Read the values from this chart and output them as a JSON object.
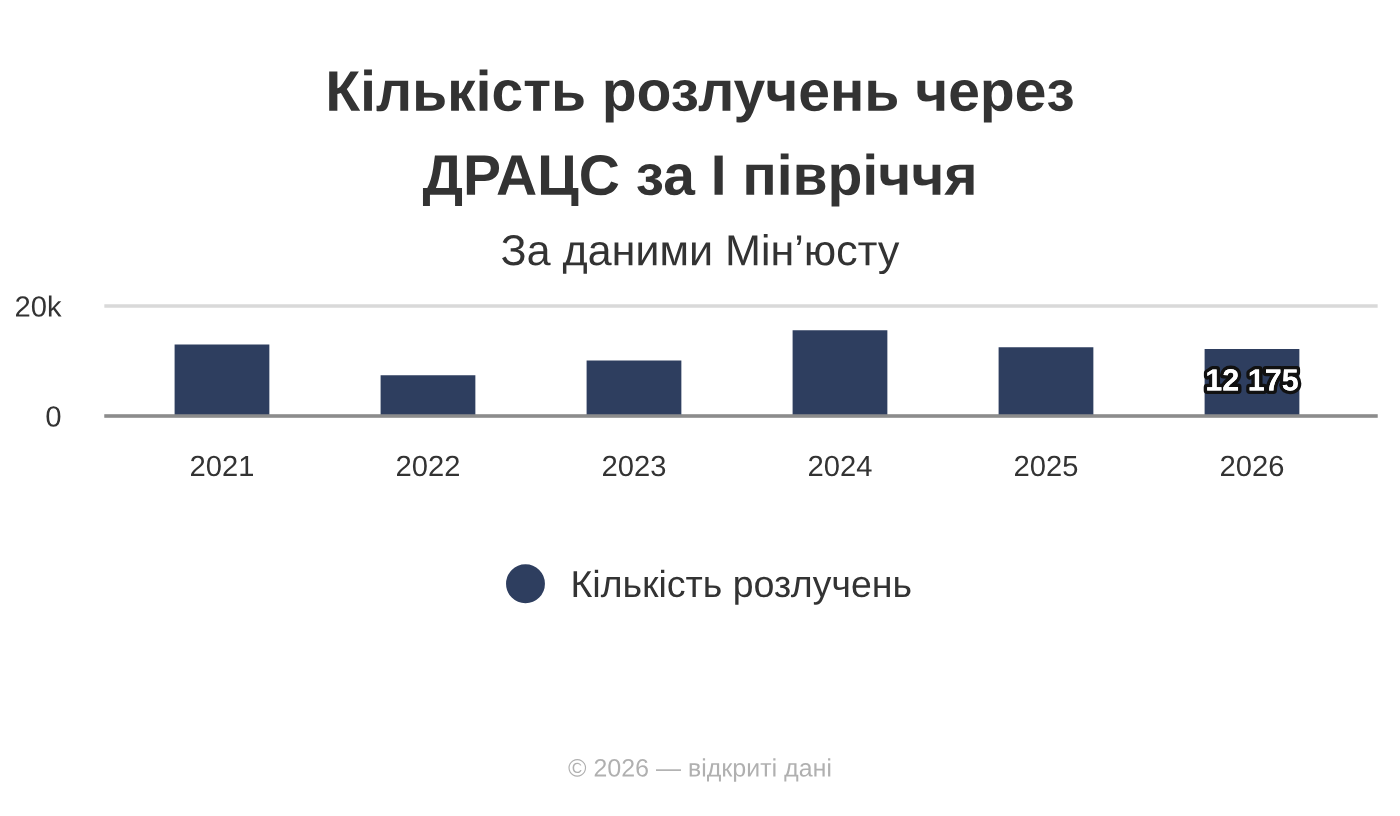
{
  "chart_data": {
    "type": "bar",
    "title": "Кількість розлучень через\nДРАЦС за І півріччя",
    "subtitle": "За даними Мін’юсту",
    "categories": [
      "2021",
      "2022",
      "2023",
      "2024",
      "2025",
      "2026"
    ],
    "series": [
      {
        "name": "Кількість розлучень",
        "color": "#2e3e5f",
        "values": [
          13000,
          7400,
          10100,
          15600,
          12500,
          12175
        ],
        "value_labels": [
          null,
          null,
          null,
          null,
          null,
          "12 175"
        ]
      }
    ],
    "ylim": [
      0,
      20000
    ],
    "yticks": [
      0,
      {
        "value": 20000,
        "label": "20k"
      }
    ],
    "grid": "y",
    "legend": "bottom",
    "annotations": [
      "© 2026 — відкриті дані"
    ]
  }
}
